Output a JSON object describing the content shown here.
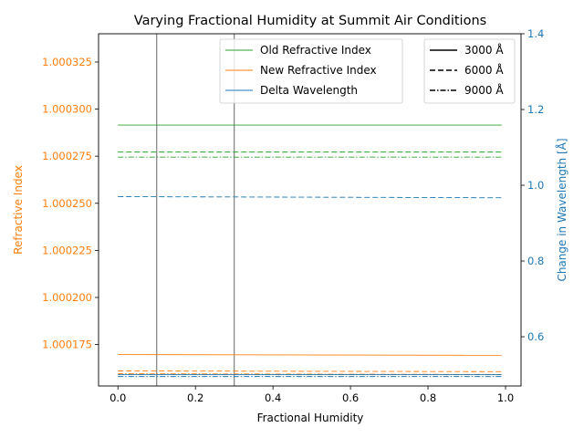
{
  "chart_data": {
    "type": "line",
    "title": "Varying Fractional Humidity at Summit Air Conditions",
    "xlabel": "Fractional Humidity",
    "ylabel_left": "Refractive Index",
    "ylabel_right": "Change in Wavelength [Å]",
    "xlim": [
      -0.05,
      1.04
    ],
    "ylim_left": [
      1.000153,
      1.00034
    ],
    "ylim_right": [
      0.47,
      1.4
    ],
    "x_ticks": [
      0.0,
      0.2,
      0.4,
      0.6,
      0.8,
      1.0
    ],
    "x_tick_labels": [
      "0.0",
      "0.2",
      "0.4",
      "0.6",
      "0.8",
      "1.0"
    ],
    "y_left_ticks": [
      1.000175,
      1.0002,
      1.000225,
      1.00025,
      1.000275,
      1.0003,
      1.000325
    ],
    "y_left_tick_labels": [
      "1.000175",
      "1.000200",
      "1.000225",
      "1.000250",
      "1.000275",
      "1.000300",
      "1.000325"
    ],
    "y_right_ticks": [
      0.6,
      0.8,
      1.0,
      1.2,
      1.4
    ],
    "y_right_tick_labels": [
      "0.6",
      "0.8",
      "1.0",
      "1.2",
      "1.4"
    ],
    "vlines": [
      0.1,
      0.3
    ],
    "x": [
      0.0,
      0.99
    ],
    "series": [
      {
        "name": "Old Refractive Index",
        "wavelength": "3000 Å",
        "axis": "left",
        "color": "#2ca02c",
        "style": "solid",
        "values": [
          1.0002915,
          1.0002915
        ]
      },
      {
        "name": "Old Refractive Index",
        "wavelength": "6000 Å",
        "axis": "left",
        "color": "#2ca02c",
        "style": "dashed",
        "values": [
          1.0002772,
          1.0002772
        ]
      },
      {
        "name": "Old Refractive Index",
        "wavelength": "9000 Å",
        "axis": "left",
        "color": "#2ca02c",
        "style": "dashdot",
        "values": [
          1.0002745,
          1.0002745
        ]
      },
      {
        "name": "New Refractive Index",
        "wavelength": "3000 Å",
        "axis": "left",
        "color": "#ff7f0e",
        "style": "solid",
        "values": [
          1.0001697,
          1.0001693
        ]
      },
      {
        "name": "New Refractive Index",
        "wavelength": "6000 Å",
        "axis": "left",
        "color": "#ff7f0e",
        "style": "dashed",
        "values": [
          1.000161,
          1.0001606
        ]
      },
      {
        "name": "New Refractive Index",
        "wavelength": "9000 Å",
        "axis": "left",
        "color": "#ff7f0e",
        "style": "dashdot",
        "values": [
          1.0001595,
          1.0001591
        ]
      },
      {
        "name": "Delta Wavelength",
        "wavelength": "3000 Å",
        "axis": "right",
        "color": "#1f77b4",
        "style": "solid",
        "values": [
          0.5,
          0.5
        ]
      },
      {
        "name": "Delta Wavelength",
        "wavelength": "6000 Å",
        "axis": "right",
        "color": "#1f77b4",
        "style": "dashed",
        "values": [
          0.97,
          0.967
        ]
      },
      {
        "name": "Delta Wavelength",
        "wavelength": "9000 Å",
        "axis": "right",
        "color": "#1f77b4",
        "style": "dashdot",
        "values": [
          0.495,
          0.495
        ]
      }
    ],
    "legend_series": [
      {
        "label": "Old Refractive Index",
        "color": "#2ca02c"
      },
      {
        "label": "New Refractive Index",
        "color": "#ff7f0e"
      },
      {
        "label": "Delta Wavelength",
        "color": "#1f77b4"
      }
    ],
    "legend_styles": [
      {
        "label": "3000 Å",
        "style": "solid"
      },
      {
        "label": "6000 Å",
        "style": "dashed"
      },
      {
        "label": "9000 Å",
        "style": "dashdot"
      }
    ],
    "legend_placement": "top",
    "grid": false,
    "colors": {
      "left_axis": "#ff7f0e",
      "right_axis": "#1f77b4",
      "vline": "#808080"
    }
  }
}
